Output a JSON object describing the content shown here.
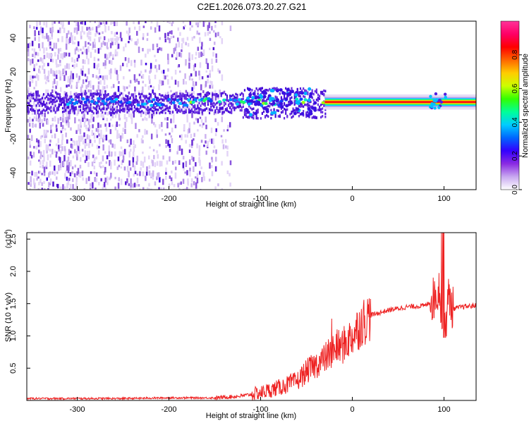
{
  "figure": {
    "title": "C2E1.2026.073.20.27.G21"
  },
  "chart_data": [
    {
      "type": "heatmap",
      "xlabel": "Height of straight line (km)",
      "ylabel": "Frequency (Hz)",
      "xlim": [
        -355,
        135
      ],
      "ylim": [
        -50,
        50
      ],
      "xticks": [
        -300,
        -200,
        -100,
        0,
        100
      ],
      "yticks": [
        -40,
        -20,
        0,
        20,
        40
      ],
      "grid": false,
      "colorbar": {
        "label": "Normalized spectral amplitude",
        "range": [
          0,
          1
        ],
        "ticks": [
          "0.0",
          "0.2",
          "0.4",
          "0.6",
          "0.8"
        ],
        "colormap": "rainbow",
        "colors": [
          "#ffffff",
          "#c8a8f0",
          "#8a2be2",
          "#3300ff",
          "#0066ff",
          "#00ccff",
          "#00ff99",
          "#33ff00",
          "#ccff00",
          "#ffcc00",
          "#ff6600",
          "#ff0000",
          "#ff0066",
          "#ff3399"
        ]
      },
      "features": {
        "noise_region_x": [
          -355,
          -150
        ],
        "main_band_frequency_hz": 2,
        "strong_band_x": [
          -30,
          135
        ]
      }
    },
    {
      "type": "line",
      "xlabel": "Height of straight line (km)",
      "ylabel": "SNR (10 * v/v)",
      "y_scale_label": "(x10",
      "y_scale_exponent": "4",
      "xlim": [
        -355,
        135
      ],
      "ylim": [
        0,
        2.6
      ],
      "xticks": [
        -300,
        -200,
        -100,
        0,
        100
      ],
      "yticks": [
        "0.5",
        "1.0",
        "1.5",
        "2.0",
        "2.5"
      ],
      "line_color": "#ee2222",
      "series": [
        {
          "x": [
            -355,
            -300,
            -250,
            -200,
            -150,
            -120,
            -100,
            -80,
            -60,
            -50,
            -40,
            -30,
            -20,
            -10,
            0,
            10,
            20,
            40,
            60,
            80,
            90,
            95,
            100,
            105,
            110,
            120,
            135
          ],
          "y": [
            0.03,
            0.03,
            0.03,
            0.04,
            0.04,
            0.07,
            0.12,
            0.2,
            0.3,
            0.45,
            0.55,
            0.65,
            0.8,
            0.85,
            1.0,
            1.2,
            1.32,
            1.4,
            1.45,
            1.47,
            1.6,
            1.75,
            1.0,
            1.6,
            1.42,
            1.45,
            1.47
          ]
        }
      ]
    }
  ]
}
